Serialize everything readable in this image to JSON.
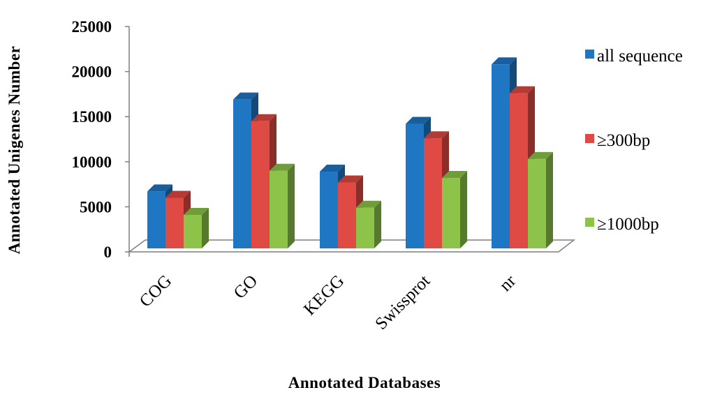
{
  "chart_data": {
    "type": "bar",
    "title": "",
    "xlabel": "Annotated Databases",
    "ylabel": "Annotated Unigenes Number",
    "categories": [
      "COG",
      "GO",
      "KEGG",
      "Swissprot",
      "nr"
    ],
    "ylim": [
      0,
      25000
    ],
    "yticks": [
      0,
      5000,
      10000,
      15000,
      20000,
      25000
    ],
    "legend_position": "right",
    "grid": false,
    "three_d": true,
    "series": [
      {
        "name": "all sequence",
        "color": "#1f77c4",
        "values": [
          6700,
          16900,
          8900,
          14200,
          20800
        ]
      },
      {
        "name": "≥300bp",
        "color": "#e04a44",
        "values": [
          6000,
          14500,
          7700,
          12600,
          17600
        ]
      },
      {
        "name": "≥1000bp",
        "color": "#8dc349",
        "values": [
          4100,
          9000,
          4900,
          8200,
          10300
        ]
      }
    ]
  }
}
